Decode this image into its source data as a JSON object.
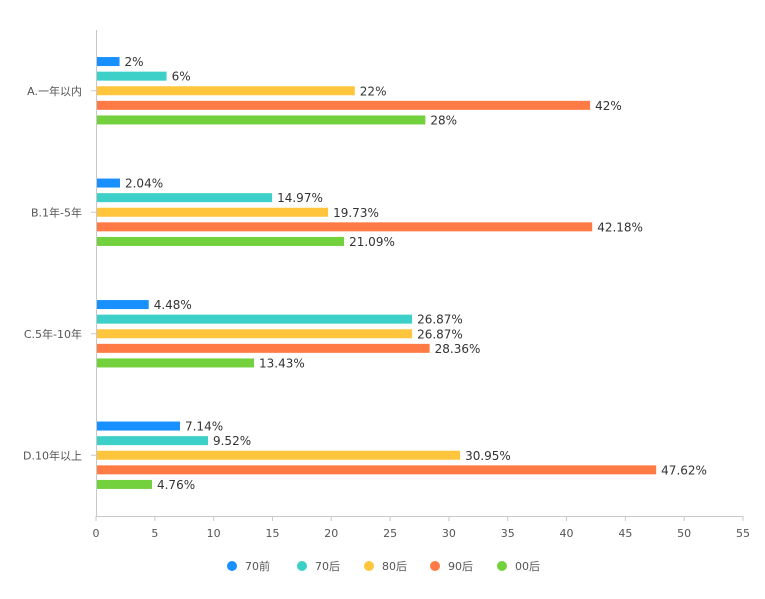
{
  "chart_data": {
    "type": "bar",
    "orientation": "horizontal",
    "categories": [
      "A.一年以内",
      "B.1年-5年",
      "C.5年-10年",
      "D.10年以上"
    ],
    "series": [
      {
        "name": "70前",
        "color": "#1890ff",
        "values": [
          2,
          2.04,
          4.48,
          7.14
        ],
        "labels": [
          "2%",
          "2.04%",
          "4.48%",
          "7.14%"
        ]
      },
      {
        "name": "70后",
        "color": "#3cd0c8",
        "values": [
          6,
          14.97,
          26.87,
          9.52
        ],
        "labels": [
          "6%",
          "14.97%",
          "26.87%",
          "9.52%"
        ]
      },
      {
        "name": "80后",
        "color": "#ffc53d",
        "values": [
          22,
          19.73,
          26.87,
          30.95
        ],
        "labels": [
          "22%",
          "19.73%",
          "26.87%",
          "30.95%"
        ]
      },
      {
        "name": "90后",
        "color": "#ff7a45",
        "values": [
          42,
          42.18,
          28.36,
          47.62
        ],
        "labels": [
          "42%",
          "42.18%",
          "28.36%",
          "47.62%"
        ]
      },
      {
        "name": "00后",
        "color": "#73d13d",
        "values": [
          28,
          21.09,
          13.43,
          4.76
        ],
        "labels": [
          "28%",
          "21.09%",
          "13.43%",
          "4.76%"
        ]
      }
    ],
    "xlim": [
      0,
      55
    ],
    "xticks": [
      "0",
      "5",
      "10",
      "15",
      "20",
      "25",
      "30",
      "35",
      "40",
      "45",
      "50",
      "55"
    ],
    "legend_position": "bottom",
    "grid": false
  }
}
